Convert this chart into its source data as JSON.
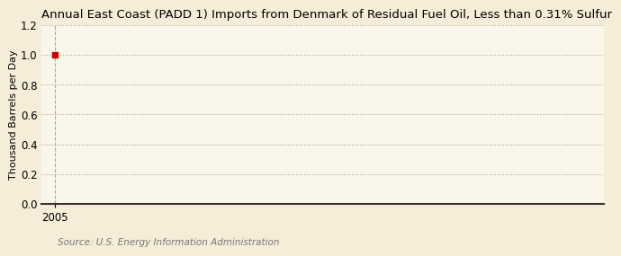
{
  "title": "Annual East Coast (PADD 1) Imports from Denmark of Residual Fuel Oil, Less than 0.31% Sulfur",
  "ylabel": "Thousand Barrels per Day",
  "source": "Source: U.S. Energy Information Administration",
  "background_color": "#f5edd8",
  "plot_bg_color": "#faf6eb",
  "data_x": [
    2005
  ],
  "data_y": [
    1.0
  ],
  "marker_color": "#cc0000",
  "marker_style": "s",
  "marker_size": 4,
  "xlim": [
    2004.4,
    2030
  ],
  "ylim": [
    0.0,
    1.2
  ],
  "yticks": [
    0.0,
    0.2,
    0.4,
    0.6,
    0.8,
    1.0,
    1.2
  ],
  "xticks": [
    2005
  ],
  "title_fontsize": 9.5,
  "ylabel_fontsize": 8,
  "source_fontsize": 7.5,
  "tick_fontsize": 8.5,
  "grid_color": "#b0a898",
  "grid_linestyle": ":",
  "grid_linewidth": 0.8,
  "vline_color": "#b0a898",
  "vline_linestyle": "--",
  "vline_linewidth": 0.8
}
